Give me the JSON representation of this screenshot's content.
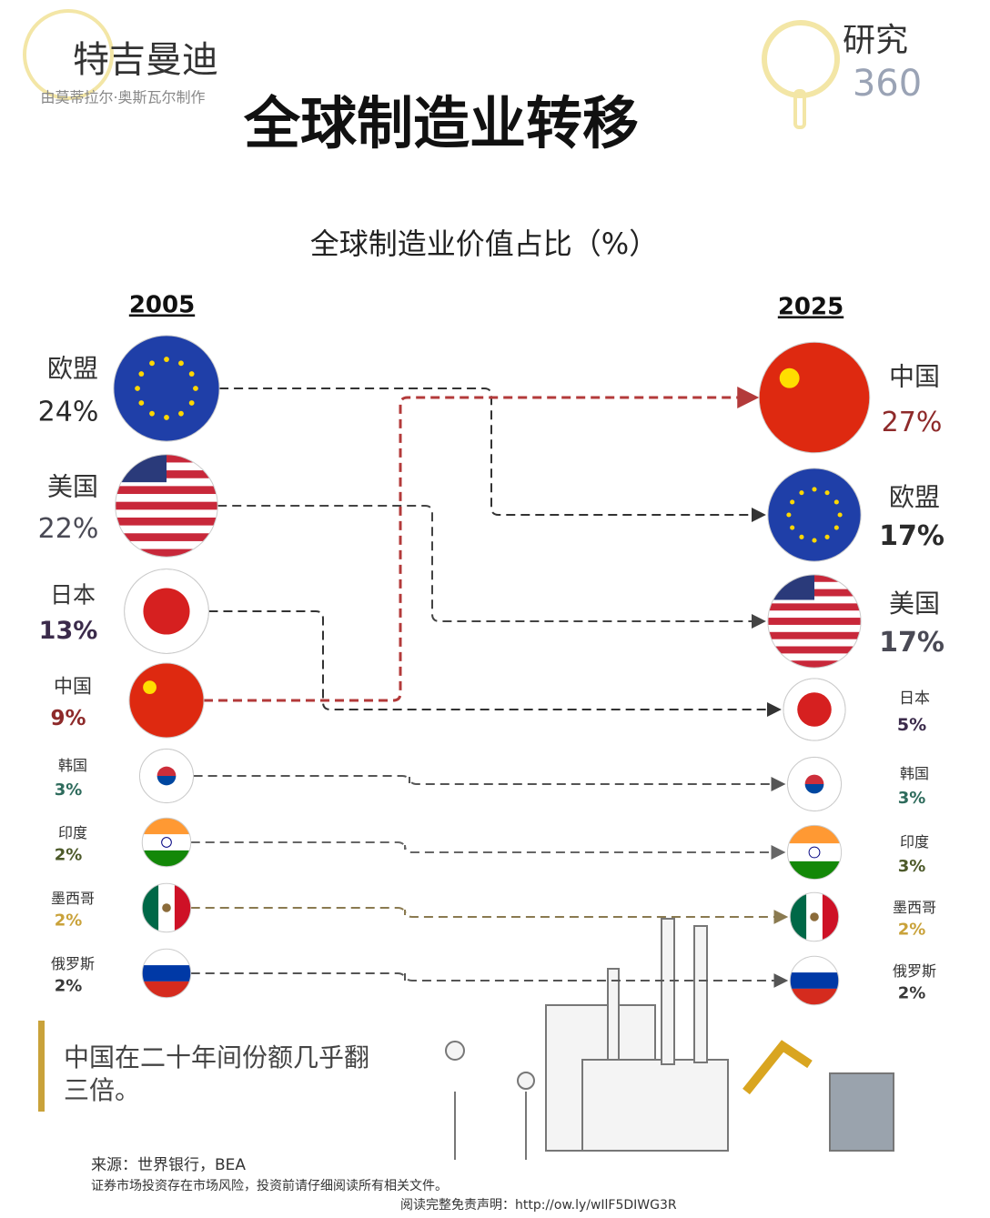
{
  "chart_data": {
    "type": "slope",
    "title": "全球制造业转移",
    "subtitle": "全球制造业价值占比（%）",
    "brand": "特吉曼迪",
    "brand_note": "由莫蒂拉尔·奥斯瓦尔制作",
    "partner": "研究",
    "partner_number": "360",
    "categories": [
      "2005",
      "2025"
    ],
    "series": [
      {
        "name": "欧盟",
        "color": "#2b2b2b",
        "values": [
          24,
          17
        ],
        "value_labels": [
          "24%",
          "17%"
        ]
      },
      {
        "name": "美国",
        "color": "#4a4a55",
        "values": [
          22,
          17
        ],
        "value_labels": [
          "22%",
          "17%"
        ]
      },
      {
        "name": "日本",
        "color": "#3b2b4b",
        "values": [
          13,
          5
        ],
        "value_labels": [
          "13%",
          "5%"
        ]
      },
      {
        "name": "中国",
        "color": "#8e2a2a",
        "values": [
          9,
          27
        ],
        "value_labels": [
          "9%",
          "27%"
        ]
      },
      {
        "name": "韩国",
        "color": "#2e6b5c",
        "values": [
          3,
          3
        ],
        "value_labels": [
          "3%",
          "3%"
        ]
      },
      {
        "name": "印度",
        "color": "#4d5a2a",
        "values": [
          2,
          3
        ],
        "value_labels": [
          "2%",
          "3%"
        ]
      },
      {
        "name": "墨西哥",
        "color": "#c9a23a",
        "values": [
          2,
          2
        ],
        "value_labels": [
          "2%",
          "2%"
        ]
      },
      {
        "name": "俄罗斯",
        "color": "#3a3a3a",
        "values": [
          2,
          2
        ],
        "value_labels": [
          "2%",
          "2%"
        ]
      }
    ],
    "note": "中国在二十年间份额几乎翻三倍。",
    "source": "来源：世界银行，BEA",
    "disclaimer": "证券市场投资存在市场风险，投资前请仔细阅读所有相关文件。",
    "link": "阅读完整免责声明：http://ow.ly/wIlF5DIWG3R"
  }
}
